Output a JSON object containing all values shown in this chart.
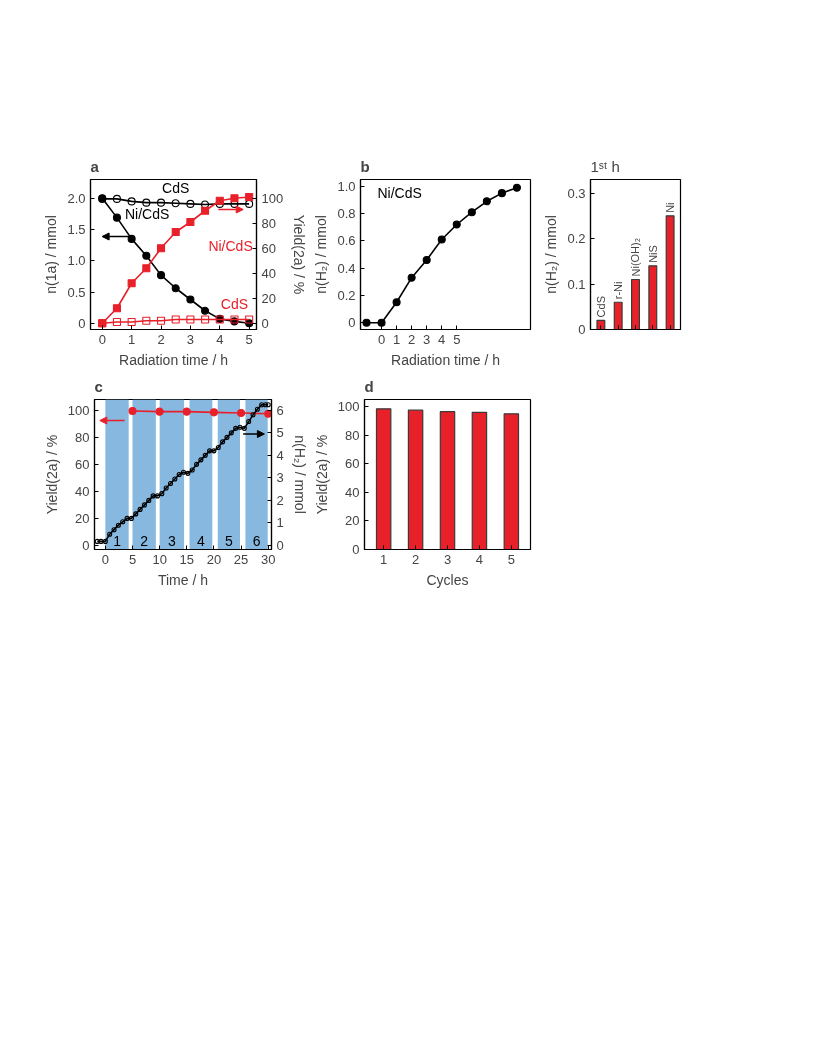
{
  "chart_data": [
    {
      "type": "line",
      "title": "a",
      "xlabel": "Radiation time / h",
      "ylabel": "n(1a) / mmol",
      "y2label": "Yield(2a) / %",
      "xlim": [
        -0.4,
        5.25
      ],
      "xticks": [
        0,
        1,
        2,
        3,
        4,
        5
      ],
      "ylim": [
        -0.1,
        2.3
      ],
      "yticks": [
        {
          "value": 0,
          "label": "0"
        },
        {
          "value": 0.5,
          "label": "0.5"
        },
        {
          "value": 1,
          "label": "1.0"
        },
        {
          "value": 1.5,
          "label": "1.5"
        },
        {
          "value": 2,
          "label": "2.0"
        }
      ],
      "y2lim": [
        -5,
        115
      ],
      "y2ticks": [
        0,
        20,
        40,
        60,
        80,
        100
      ],
      "x": [
        0,
        0.5,
        1,
        1.5,
        2,
        2.5,
        3,
        3.5,
        4,
        4.5,
        5
      ],
      "series": [
        {
          "name": "CdS",
          "color": "#000000",
          "marker": "circle",
          "values": [
            1.99,
            1.99,
            1.95,
            1.93,
            1.93,
            1.92,
            1.91,
            1.9,
            1.91,
            1.91,
            1.91
          ]
        },
        {
          "name": "Ni/CdS",
          "color": "#000000",
          "marker": "circle",
          "values": [
            2.0,
            1.69,
            1.35,
            1.08,
            0.77,
            0.56,
            0.38,
            0.2,
            0.07,
            0.03,
            0.0
          ]
        },
        {
          "name": "Ni/CdS",
          "color": "#e8202a",
          "marker": "square",
          "axis": "y2",
          "values": [
            0,
            12,
            32,
            44,
            60,
            73,
            81,
            90,
            98,
            100,
            101
          ]
        },
        {
          "name": "CdS",
          "color": "#e8202a",
          "marker": "square",
          "axis": "y2",
          "values": [
            0,
            1,
            1,
            2,
            2,
            3,
            3,
            3,
            3,
            3,
            3
          ]
        }
      ]
    },
    {
      "type": "line",
      "title": "b",
      "xlabel": "Radiation time / h",
      "ylabel": "n(H₂) / mmol",
      "xlim": [
        -1.4,
        9.9
      ],
      "xticks": [
        0,
        1,
        2,
        3,
        4,
        5
      ],
      "ylim": [
        -0.05,
        1.05
      ],
      "yticks": [
        {
          "value": 0,
          "label": "0"
        },
        {
          "value": 0.2,
          "label": "0.2"
        },
        {
          "value": 0.4,
          "label": "0.4"
        },
        {
          "value": 0.6,
          "label": "0.6"
        },
        {
          "value": 0.8,
          "label": "0.8"
        },
        {
          "value": 1,
          "label": "1.0"
        }
      ],
      "x": [
        -1,
        0,
        1,
        2,
        3,
        4,
        5,
        6,
        7,
        8,
        9
      ],
      "series": [
        {
          "name": "Ni/CdS",
          "color": "#000000",
          "marker": "circle",
          "values": [
            0,
            0,
            0.15,
            0.33,
            0.46,
            0.61,
            0.72,
            0.81,
            0.89,
            0.95,
            0.99
          ]
        }
      ]
    },
    {
      "type": "bar",
      "title": "1ˢᵗ h",
      "ylabel": "n(H₂) / mmol",
      "categories": [
        "CdS",
        "r-Ni",
        "Ni(OH)₂",
        "NiS",
        "Ni"
      ],
      "values": [
        0.02,
        0.06,
        0.11,
        0.14,
        0.25
      ],
      "color": "#e8202a",
      "ylim": [
        0,
        0.33
      ],
      "yticks": [
        {
          "value": 0,
          "label": "0"
        },
        {
          "value": 0.1,
          "label": "0.1"
        },
        {
          "value": 0.2,
          "label": "0.2"
        },
        {
          "value": 0.3,
          "label": "0.3"
        }
      ]
    },
    {
      "type": "line",
      "title": "c",
      "xlabel": "Time / h",
      "ylabel": "Yield(2a) / %",
      "y2label": "n(H₂) / mmol",
      "xlim": [
        -2,
        30.6
      ],
      "xticks": [
        0,
        5,
        10,
        15,
        20,
        25,
        30
      ],
      "ylim": [
        -3,
        108
      ],
      "yticks": [
        0,
        20,
        40,
        60,
        80,
        100
      ],
      "y2lim": [
        -0.18,
        6.48
      ],
      "y2ticks": [
        0,
        1,
        2,
        3,
        4,
        5,
        6
      ],
      "bands": [
        {
          "axis": "x",
          "from": 0,
          "to": 4.3,
          "label": "1",
          "color": "#86b8e0"
        },
        {
          "axis": "x",
          "from": 5,
          "to": 9.3,
          "label": "2",
          "color": "#86b8e0"
        },
        {
          "axis": "x",
          "from": 10,
          "to": 14.5,
          "label": "3",
          "color": "#86b8e0"
        },
        {
          "axis": "x",
          "from": 15.5,
          "to": 19.7,
          "label": "4",
          "color": "#86b8e0"
        },
        {
          "axis": "x",
          "from": 20.7,
          "to": 24.8,
          "label": "5",
          "color": "#86b8e0"
        },
        {
          "axis": "x",
          "from": 25.8,
          "to": 29.9,
          "label": "6",
          "color": "#86b8e0"
        }
      ],
      "series": [
        {
          "color": "#e8202a",
          "marker": "circle",
          "x": [
            5,
            10,
            15,
            20,
            25,
            30
          ],
          "values": [
            99.5,
            99,
            99,
            98.5,
            98,
            97.5
          ]
        },
        {
          "color": "#000000",
          "marker": "circle",
          "axis": "y2",
          "x": [
            -1.5,
            -0.8,
            0,
            0.8,
            1.6,
            2.4,
            3.2,
            4.0,
            4.8,
            5.6,
            6.4,
            7.2,
            8.0,
            8.8,
            9.6,
            10.4,
            11.2,
            12,
            12.8,
            13.6,
            14.4,
            15.2,
            16,
            16.8,
            17.6,
            18.4,
            19.2,
            20,
            20.8,
            21.6,
            22.4,
            23.2,
            24,
            24.8,
            25.6,
            26.4,
            27.2,
            28,
            28.8,
            29.5,
            30
          ],
          "values": [
            0.18,
            0.18,
            0.18,
            0.5,
            0.7,
            0.9,
            1.05,
            1.2,
            1.2,
            1.4,
            1.6,
            1.8,
            2.0,
            2.2,
            2.2,
            2.3,
            2.55,
            2.75,
            2.95,
            3.15,
            3.25,
            3.2,
            3.35,
            3.6,
            3.8,
            4.0,
            4.2,
            4.2,
            4.35,
            4.6,
            4.8,
            5.0,
            5.2,
            5.25,
            5.2,
            5.5,
            5.8,
            6.05,
            6.25,
            6.25,
            6.25
          ]
        }
      ]
    },
    {
      "type": "bar",
      "title": "d",
      "xlabel": "Cycles",
      "ylabel": "Yield(2a) / %",
      "categories": [
        "1",
        "2",
        "3",
        "4",
        "5"
      ],
      "values": [
        98.5,
        97.5,
        96.5,
        96,
        95
      ],
      "color": "#e8202a",
      "ylim": [
        0,
        105
      ],
      "yticks": [
        0,
        20,
        40,
        60,
        80,
        100
      ]
    }
  ]
}
